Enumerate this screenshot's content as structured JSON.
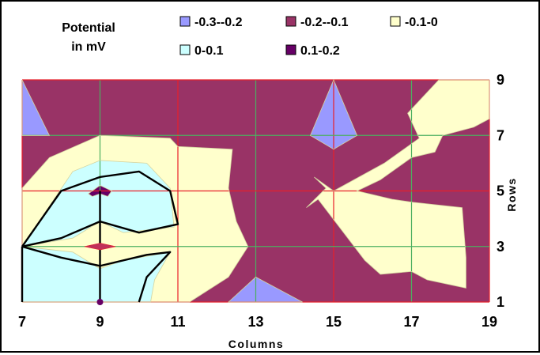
{
  "chart_data": {
    "type": "contour",
    "title": "Potential in mV",
    "title_lines": [
      "Potential",
      "in mV"
    ],
    "xlabel": "Columns",
    "ylabel": "Rows",
    "xlim": [
      7,
      19
    ],
    "ylim": [
      1,
      9
    ],
    "x_ticks": [
      "7",
      "9",
      "11",
      "13",
      "15",
      "17",
      "19"
    ],
    "y_ticks": [
      "1",
      "3",
      "5",
      "7",
      "9"
    ],
    "legend_position": "top",
    "grid": true,
    "levels": [
      {
        "label": "-0.3--0.2",
        "range": [
          -0.3,
          -0.2
        ],
        "color": "#9999ff"
      },
      {
        "label": "-0.2--0.1",
        "range": [
          -0.2,
          -0.1
        ],
        "color": "#993366"
      },
      {
        "label": "-0.1-0",
        "range": [
          -0.1,
          0
        ],
        "color": "#ffffcc"
      },
      {
        "label": "0-0.1",
        "range": [
          0,
          0.1
        ],
        "color": "#ccffff"
      },
      {
        "label": "0.1-0.2",
        "range": [
          0.1,
          0.2
        ],
        "color": "#660066"
      }
    ],
    "regions": [
      {
        "level": "-0.1-0",
        "points": [
          [
            7,
            5.1
          ],
          [
            7.7,
            6.2
          ],
          [
            9,
            7
          ],
          [
            10.8,
            6.9
          ],
          [
            11,
            6.6
          ],
          [
            12.4,
            6.5
          ],
          [
            12.3,
            5.1
          ],
          [
            12.5,
            3.9
          ],
          [
            12.8,
            3
          ],
          [
            12.3,
            1.9
          ],
          [
            11.3,
            1
          ],
          [
            7,
            1
          ]
        ]
      },
      {
        "level": "-0.1-0",
        "points": [
          [
            17.7,
            9
          ],
          [
            19,
            9
          ],
          [
            19,
            7.6
          ],
          [
            18.6,
            7.3
          ],
          [
            17.8,
            7
          ],
          [
            17.6,
            6.4
          ],
          [
            17,
            6.2
          ],
          [
            16.2,
            5.4
          ],
          [
            15.6,
            5
          ],
          [
            16.5,
            4.7
          ],
          [
            17,
            4.6
          ],
          [
            18.3,
            4.4
          ],
          [
            18.4,
            2.6
          ],
          [
            18.4,
            1.5
          ],
          [
            17.4,
            1.8
          ],
          [
            17,
            2.1
          ],
          [
            16.2,
            2
          ],
          [
            15.8,
            2.5
          ],
          [
            14.6,
            4.7
          ],
          [
            14.3,
            4.4
          ],
          [
            14.8,
            5.1
          ],
          [
            14.5,
            5.5
          ],
          [
            15,
            5
          ],
          [
            16.3,
            6
          ],
          [
            17.2,
            6.9
          ],
          [
            16.9,
            7.8
          ]
        ]
      },
      {
        "level": "0-0.1",
        "points": [
          [
            7,
            3
          ],
          [
            8.3,
            5.7
          ],
          [
            9,
            6.1
          ],
          [
            10.2,
            6
          ],
          [
            10.8,
            5.1
          ],
          [
            10.9,
            3.7
          ],
          [
            9.6,
            3.5
          ],
          [
            9,
            3.9
          ],
          [
            8.3,
            3.3
          ]
        ]
      },
      {
        "level": "0-0.1",
        "points": [
          [
            7,
            3
          ],
          [
            8.3,
            2.8
          ],
          [
            9,
            2.2
          ],
          [
            9.6,
            2.5
          ],
          [
            10.8,
            2.8
          ],
          [
            10.4,
            1.8
          ],
          [
            10.3,
            1
          ],
          [
            7,
            1
          ]
        ]
      },
      {
        "level": "-0.3--0.2",
        "points": [
          [
            7,
            9
          ],
          [
            7.7,
            7
          ],
          [
            7,
            7
          ]
        ]
      },
      {
        "level": "-0.3--0.2",
        "points": [
          [
            15,
            9
          ],
          [
            15.6,
            7
          ],
          [
            15,
            6.5
          ],
          [
            14.4,
            7
          ]
        ]
      },
      {
        "level": "-0.3--0.2",
        "points": [
          [
            12.3,
            1
          ],
          [
            13,
            1.9
          ],
          [
            14.2,
            1
          ]
        ]
      },
      {
        "level": "0.1-0.2",
        "points": [
          [
            8.7,
            4.9
          ],
          [
            9,
            5.2
          ],
          [
            9.3,
            5
          ],
          [
            9.2,
            4.8
          ],
          [
            9,
            4.9
          ],
          [
            8.8,
            4.8
          ]
        ]
      }
    ],
    "contour_lines": [
      [
        [
          7,
          3
        ],
        [
          8,
          5
        ],
        [
          9,
          5.5
        ],
        [
          10,
          5.7
        ],
        [
          10.8,
          5
        ],
        [
          11,
          3.8
        ],
        [
          10,
          3.5
        ],
        [
          9,
          3.9
        ],
        [
          8,
          3.3
        ],
        [
          7,
          3
        ]
      ],
      [
        [
          7,
          3
        ],
        [
          8,
          2.6
        ],
        [
          9,
          2.3
        ],
        [
          10.2,
          2.7
        ],
        [
          10.8,
          2.8
        ],
        [
          10.2,
          1.9
        ],
        [
          10,
          1
        ]
      ]
    ]
  }
}
